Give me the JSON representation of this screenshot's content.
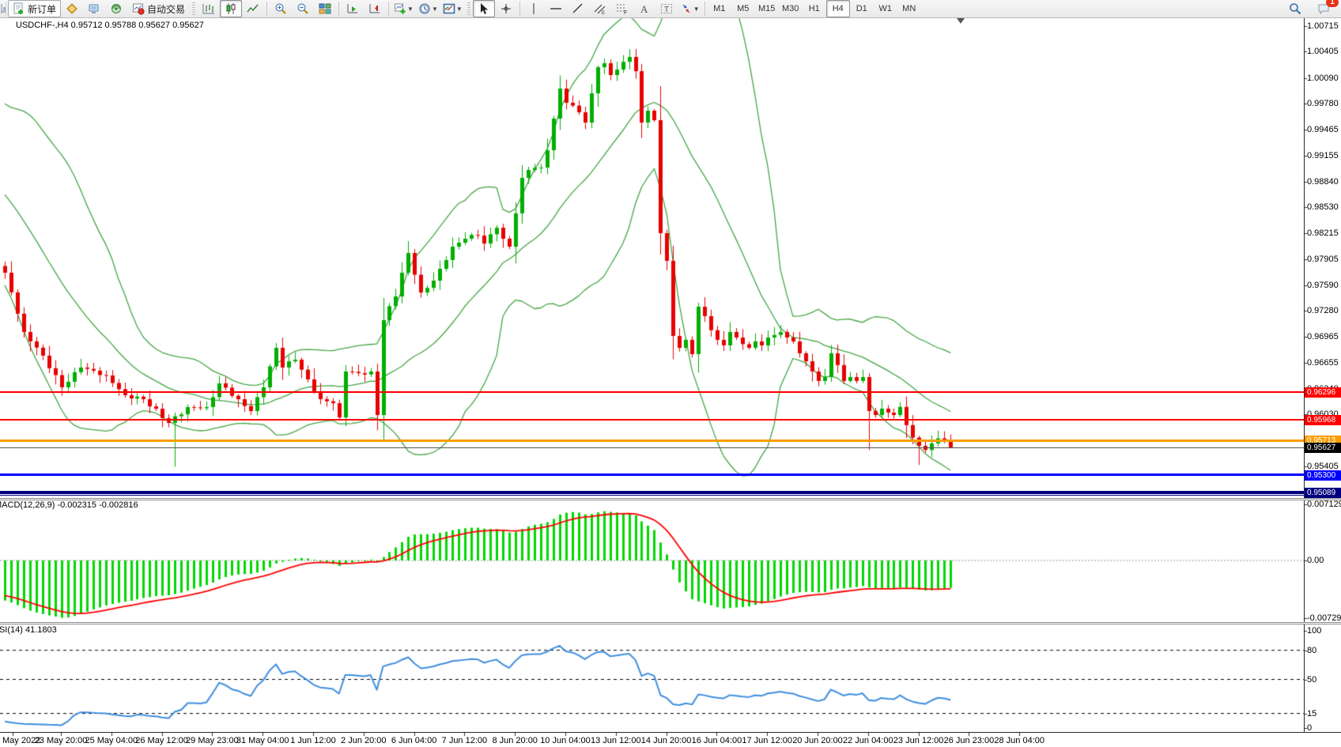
{
  "toolbar": {
    "new_order_label": "新订单",
    "auto_trading_label": "自动交易",
    "timeframes": [
      "M1",
      "M5",
      "M15",
      "M30",
      "H1",
      "H4",
      "D1",
      "W1",
      "MN"
    ],
    "active_timeframe": "H4",
    "chat_badge_count": "1",
    "icons": [
      "new-order-icon",
      "gold-ingot-icon",
      "terminal-icon",
      "signal-icon",
      "auto-trading-icon",
      "bar-chart-icon",
      "candlestick-chart-icon",
      "line-chart-icon",
      "zoom-in-icon",
      "zoom-out-icon",
      "tile-windows-icon",
      "auto-scroll-icon",
      "chart-shift-icon",
      "new-chart-icon",
      "periods-clock-icon",
      "templates-icon",
      "cursor-icon",
      "crosshair-icon",
      "vertical-line-icon",
      "horizontal-line-icon",
      "trendline-icon",
      "equidistant-channel-icon",
      "fibonacci-icon",
      "text-icon",
      "text-label-icon",
      "arrows-icon",
      "search-icon",
      "chat-icon"
    ]
  },
  "quote_line": "USDCHF-,H4 0.95712 0.95788 0.95627 0.95627",
  "chart_data": {
    "type": "candlestick",
    "symbol": "USDCHF-",
    "timeframe": "H4",
    "last_candle": {
      "open": 0.95712,
      "high": 0.95788,
      "low": 0.95627,
      "close": 0.95627
    },
    "price_axis_ticks": [
      "1.00715",
      "1.00405",
      "1.00090",
      "0.99780",
      "0.99465",
      "0.99155",
      "0.98840",
      "0.98530",
      "0.98215",
      "0.97905",
      "0.97590",
      "0.97280",
      "0.96965",
      "0.96655",
      "0.96340",
      "0.96030",
      "0.95720",
      "0.95405",
      "0.95095"
    ],
    "horizontal_lines": [
      {
        "price": 0.96296,
        "label": "0.96296",
        "color": "#FF0000",
        "thickness": 2
      },
      {
        "price": 0.95968,
        "label": "0.95968",
        "color": "#FF0000",
        "thickness": 2
      },
      {
        "price": 0.95713,
        "label": "0.95713",
        "color": "#FF9C00",
        "thickness": 3
      },
      {
        "price": 0.953,
        "label": "0.95300",
        "color": "#0000FF",
        "thickness": 3
      },
      {
        "price": 0.95089,
        "label": "0.95089",
        "color": "#000080",
        "thickness": 4
      }
    ],
    "bid_line": {
      "price": 0.95627,
      "label": "0.95627",
      "color": "#000000"
    },
    "close_waypoints": [
      [
        0,
        0.97739
      ],
      [
        3,
        0.97024
      ],
      [
        6,
        0.96738
      ],
      [
        9,
        0.96356
      ],
      [
        12,
        0.96595
      ],
      [
        16,
        0.96499
      ],
      [
        19,
        0.96261
      ],
      [
        22,
        0.96213
      ],
      [
        26,
        0.95927
      ],
      [
        29,
        0.96118
      ],
      [
        32,
        0.96118
      ],
      [
        34,
        0.96404
      ],
      [
        37,
        0.96213
      ],
      [
        39,
        0.9607
      ],
      [
        41,
        0.96356
      ],
      [
        43,
        0.96833
      ],
      [
        44,
        0.96595
      ],
      [
        46,
        0.9669
      ],
      [
        48,
        0.96452
      ],
      [
        50,
        0.96213
      ],
      [
        52,
        0.96165
      ],
      [
        53,
        0.95993
      ],
      [
        54,
        0.96547
      ],
      [
        56,
        0.96528
      ],
      [
        58,
        0.96547
      ],
      [
        59,
        0.96022
      ],
      [
        60,
        0.97167
      ],
      [
        62,
        0.97453
      ],
      [
        63,
        0.97739
      ],
      [
        64,
        0.97977
      ],
      [
        66,
        0.975
      ],
      [
        68,
        0.97643
      ],
      [
        69,
        0.97786
      ],
      [
        71,
        0.98053
      ],
      [
        73,
        0.98149
      ],
      [
        75,
        0.98187
      ],
      [
        76,
        0.98091
      ],
      [
        78,
        0.98282
      ],
      [
        79,
        0.98149
      ],
      [
        80,
        0.98053
      ],
      [
        82,
        0.98884
      ],
      [
        83,
        0.98979
      ],
      [
        85,
        0.99008
      ],
      [
        86,
        0.99217
      ],
      [
        87,
        0.99599
      ],
      [
        88,
        0.99961
      ],
      [
        89,
        0.9979
      ],
      [
        91,
        0.99675
      ],
      [
        92,
        0.99551
      ],
      [
        93,
        0.99904
      ],
      [
        94,
        1.00219
      ],
      [
        95,
        1.00267
      ],
      [
        96,
        1.00124
      ],
      [
        97,
        1.0019
      ],
      [
        99,
        1.00343
      ],
      [
        100,
        1.00171
      ],
      [
        101,
        0.99551
      ],
      [
        102,
        0.99694
      ],
      [
        103,
        0.9958
      ],
      [
        104,
        0.98216
      ],
      [
        105,
        0.97882
      ],
      [
        106,
        0.96976
      ],
      [
        107,
        0.96833
      ],
      [
        108,
        0.96929
      ],
      [
        109,
        0.96757
      ],
      [
        110,
        0.97329
      ],
      [
        111,
        0.97215
      ],
      [
        113,
        0.96929
      ],
      [
        114,
        0.96862
      ],
      [
        115,
        0.97024
      ],
      [
        116,
        0.96957
      ],
      [
        118,
        0.96833
      ],
      [
        119,
        0.9691
      ],
      [
        120,
        0.96862
      ],
      [
        121,
        0.96957
      ],
      [
        123,
        0.97024
      ],
      [
        124,
        0.96957
      ],
      [
        125,
        0.9691
      ],
      [
        126,
        0.96767
      ],
      [
        128,
        0.96547
      ],
      [
        129,
        0.96433
      ],
      [
        130,
        0.9648
      ],
      [
        131,
        0.96767
      ],
      [
        133,
        0.96433
      ],
      [
        134,
        0.9648
      ],
      [
        135,
        0.96433
      ],
      [
        136,
        0.9648
      ],
      [
        137,
        0.9607
      ],
      [
        138,
        0.96022
      ],
      [
        139,
        0.96099
      ],
      [
        140,
        0.96051
      ],
      [
        141,
        0.96022
      ],
      [
        142,
        0.9612
      ],
      [
        143,
        0.959
      ],
      [
        144,
        0.9575
      ],
      [
        145,
        0.9565
      ],
      [
        146,
        0.956
      ],
      [
        147,
        0.9568
      ],
      [
        148,
        0.9574
      ],
      [
        149,
        0.95712
      ],
      [
        150,
        0.95627
      ]
    ],
    "prehistory_waypoints": [
      [
        -30,
        1.003
      ],
      [
        -26,
        0.9995
      ],
      [
        -22,
        0.9985
      ],
      [
        -18,
        0.9935
      ],
      [
        -14,
        0.9925
      ],
      [
        -10,
        0.987
      ],
      [
        -7,
        0.9855
      ],
      [
        -4,
        0.98
      ],
      [
        -2,
        0.9812
      ],
      [
        -1,
        0.9782
      ]
    ],
    "special_wicks": [
      {
        "i": 27,
        "low": 0.954
      },
      {
        "i": 64,
        "high": 0.9812
      },
      {
        "i": 88,
        "high": 1.0012
      },
      {
        "i": 99,
        "high": 1.00438
      },
      {
        "i": 137,
        "low": 0.956
      },
      {
        "i": 145,
        "low": 0.9542
      }
    ],
    "colors": {
      "candle_up": "#00AE00",
      "candle_down": "#E80000",
      "bollinger": "#44A544",
      "macd_histogram": "#00D800",
      "macd_signal": "#FF0000",
      "rsi_line": "#3E8EDE"
    },
    "indicators": {
      "bollinger": {
        "period": 20,
        "deviation": 2
      },
      "macd": {
        "label": "MACD(12,26,9) -0.002315 -0.002816",
        "axis_ticks": [
          "0.007129",
          "0.00",
          "-0.00729"
        ],
        "values": [
          0.007129,
          0,
          -0.00729
        ]
      },
      "rsi": {
        "label": "RSI(14) 41.1803",
        "current": 41.1803,
        "axis_ticks": [
          "100",
          "80",
          "50",
          "15",
          "0"
        ],
        "tick_values": [
          100,
          80,
          50,
          15,
          0
        ],
        "dashed_levels": [
          80,
          50,
          15
        ]
      }
    },
    "time_labels": [
      "May 2022",
      "23 May 20:00",
      "25 May 04:00",
      "26 May 12:00",
      "29 May 23:00",
      "31 May 04:00",
      "1 Jun 12:00",
      "2 Jun 20:00",
      "6 Jun 04:00",
      "7 Jun 12:00",
      "8 Jun 20:00",
      "10 Jun 04:00",
      "13 Jun 12:00",
      "14 Jun 20:00",
      "16 Jun 04:00",
      "17 Jun 12:00",
      "20 Jun 20:00",
      "22 Jun 04:00",
      "23 Jun 12:00",
      "26 Jun 23:00",
      "28 Jun 04:00"
    ]
  }
}
